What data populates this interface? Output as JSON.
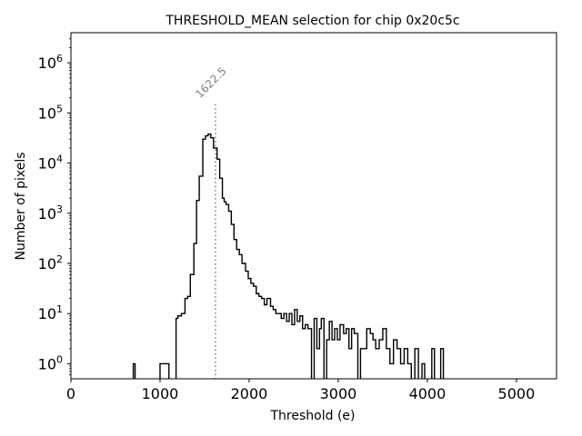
{
  "chart_data": {
    "type": "histogram",
    "title": "THRESHOLD_MEAN selection for chip 0x20c5c",
    "xlabel": "Threshold (e)",
    "ylabel": "Number of pixels",
    "xlim": [
      0,
      5450
    ],
    "yscale": "log",
    "ylim_exponent": [
      -0.3,
      6.6
    ],
    "x_ticks": [
      {
        "value": 0,
        "label": "0"
      },
      {
        "value": 1000,
        "label": "1000"
      },
      {
        "value": 2000,
        "label": "2000"
      },
      {
        "value": 3000,
        "label": "3000"
      },
      {
        "value": 4000,
        "label": "4000"
      },
      {
        "value": 5000,
        "label": "5000"
      }
    ],
    "y_ticks": [
      {
        "exponent": 0,
        "base": "10",
        "sup": "0"
      },
      {
        "exponent": 1,
        "base": "10",
        "sup": "1"
      },
      {
        "exponent": 2,
        "base": "10",
        "sup": "2"
      },
      {
        "exponent": 3,
        "base": "10",
        "sup": "3"
      },
      {
        "exponent": 4,
        "base": "10",
        "sup": "4"
      },
      {
        "exponent": 5,
        "base": "10",
        "sup": "5"
      },
      {
        "exponent": 6,
        "base": "10",
        "sup": "6"
      }
    ],
    "annotation": {
      "value": 1622.5,
      "label": "1622.5",
      "top": 150000,
      "color": "#808080"
    },
    "series": [
      {
        "name": "pixels",
        "color": "#000000",
        "bins": [
          [
            700,
            720,
            1
          ],
          [
            1000,
            1100,
            1
          ],
          [
            1180,
            1200,
            8
          ],
          [
            1200,
            1240,
            9
          ],
          [
            1240,
            1280,
            10
          ],
          [
            1280,
            1310,
            20
          ],
          [
            1310,
            1340,
            22
          ],
          [
            1340,
            1380,
            60
          ],
          [
            1380,
            1410,
            250
          ],
          [
            1410,
            1440,
            1800
          ],
          [
            1440,
            1480,
            5500
          ],
          [
            1480,
            1510,
            30000
          ],
          [
            1510,
            1540,
            35000
          ],
          [
            1540,
            1570,
            38000
          ],
          [
            1570,
            1600,
            32000
          ],
          [
            1600,
            1640,
            20000
          ],
          [
            1640,
            1670,
            12000
          ],
          [
            1670,
            1700,
            5000
          ],
          [
            1700,
            1720,
            2000
          ],
          [
            1720,
            1740,
            1700
          ],
          [
            1740,
            1770,
            1500
          ],
          [
            1770,
            1800,
            1100
          ],
          [
            1800,
            1830,
            600
          ],
          [
            1830,
            1860,
            300
          ],
          [
            1860,
            1890,
            190
          ],
          [
            1890,
            1920,
            150
          ],
          [
            1920,
            1960,
            100
          ],
          [
            1960,
            1990,
            70
          ],
          [
            1990,
            2020,
            50
          ],
          [
            2020,
            2050,
            40
          ],
          [
            2050,
            2080,
            35
          ],
          [
            2080,
            2110,
            25
          ],
          [
            2110,
            2140,
            22
          ],
          [
            2140,
            2170,
            20
          ],
          [
            2170,
            2200,
            15
          ],
          [
            2200,
            2240,
            20
          ],
          [
            2240,
            2270,
            14
          ],
          [
            2270,
            2300,
            12
          ],
          [
            2300,
            2330,
            10
          ],
          [
            2330,
            2360,
            10
          ],
          [
            2360,
            2390,
            8
          ],
          [
            2390,
            2420,
            10
          ],
          [
            2420,
            2450,
            7
          ],
          [
            2450,
            2480,
            10
          ],
          [
            2480,
            2510,
            6
          ],
          [
            2510,
            2540,
            12
          ],
          [
            2540,
            2570,
            7
          ],
          [
            2570,
            2600,
            9
          ],
          [
            2600,
            2630,
            5
          ],
          [
            2630,
            2660,
            6
          ],
          [
            2660,
            2700,
            5
          ],
          [
            2700,
            2730,
            0
          ],
          [
            2730,
            2760,
            8
          ],
          [
            2760,
            2790,
            2
          ],
          [
            2790,
            2810,
            5
          ],
          [
            2810,
            2840,
            8
          ],
          [
            2840,
            2870,
            0
          ],
          [
            2870,
            2900,
            3
          ],
          [
            2900,
            2930,
            7
          ],
          [
            2930,
            2960,
            3
          ],
          [
            2960,
            2990,
            5
          ],
          [
            2990,
            3020,
            3
          ],
          [
            3020,
            3060,
            6
          ],
          [
            3060,
            3090,
            4
          ],
          [
            3090,
            3120,
            5
          ],
          [
            3120,
            3150,
            2
          ],
          [
            3150,
            3180,
            5
          ],
          [
            3180,
            3220,
            4
          ],
          [
            3220,
            3250,
            0
          ],
          [
            3250,
            3280,
            2
          ],
          [
            3280,
            3320,
            2
          ],
          [
            3320,
            3360,
            5
          ],
          [
            3360,
            3390,
            4
          ],
          [
            3390,
            3420,
            3
          ],
          [
            3420,
            3460,
            2
          ],
          [
            3460,
            3500,
            3
          ],
          [
            3500,
            3540,
            5
          ],
          [
            3540,
            3580,
            2
          ],
          [
            3580,
            3620,
            1
          ],
          [
            3620,
            3660,
            3
          ],
          [
            3660,
            3700,
            2
          ],
          [
            3700,
            3740,
            1
          ],
          [
            3740,
            3780,
            2
          ],
          [
            3780,
            3820,
            1
          ],
          [
            3820,
            3860,
            0
          ],
          [
            3860,
            3900,
            2
          ],
          [
            3900,
            3940,
            0
          ],
          [
            3940,
            3970,
            1
          ],
          [
            3970,
            4000,
            0
          ],
          [
            4000,
            4050,
            0
          ],
          [
            4050,
            4080,
            2
          ],
          [
            4080,
            4150,
            0
          ],
          [
            4150,
            4180,
            2
          ]
        ]
      }
    ]
  }
}
